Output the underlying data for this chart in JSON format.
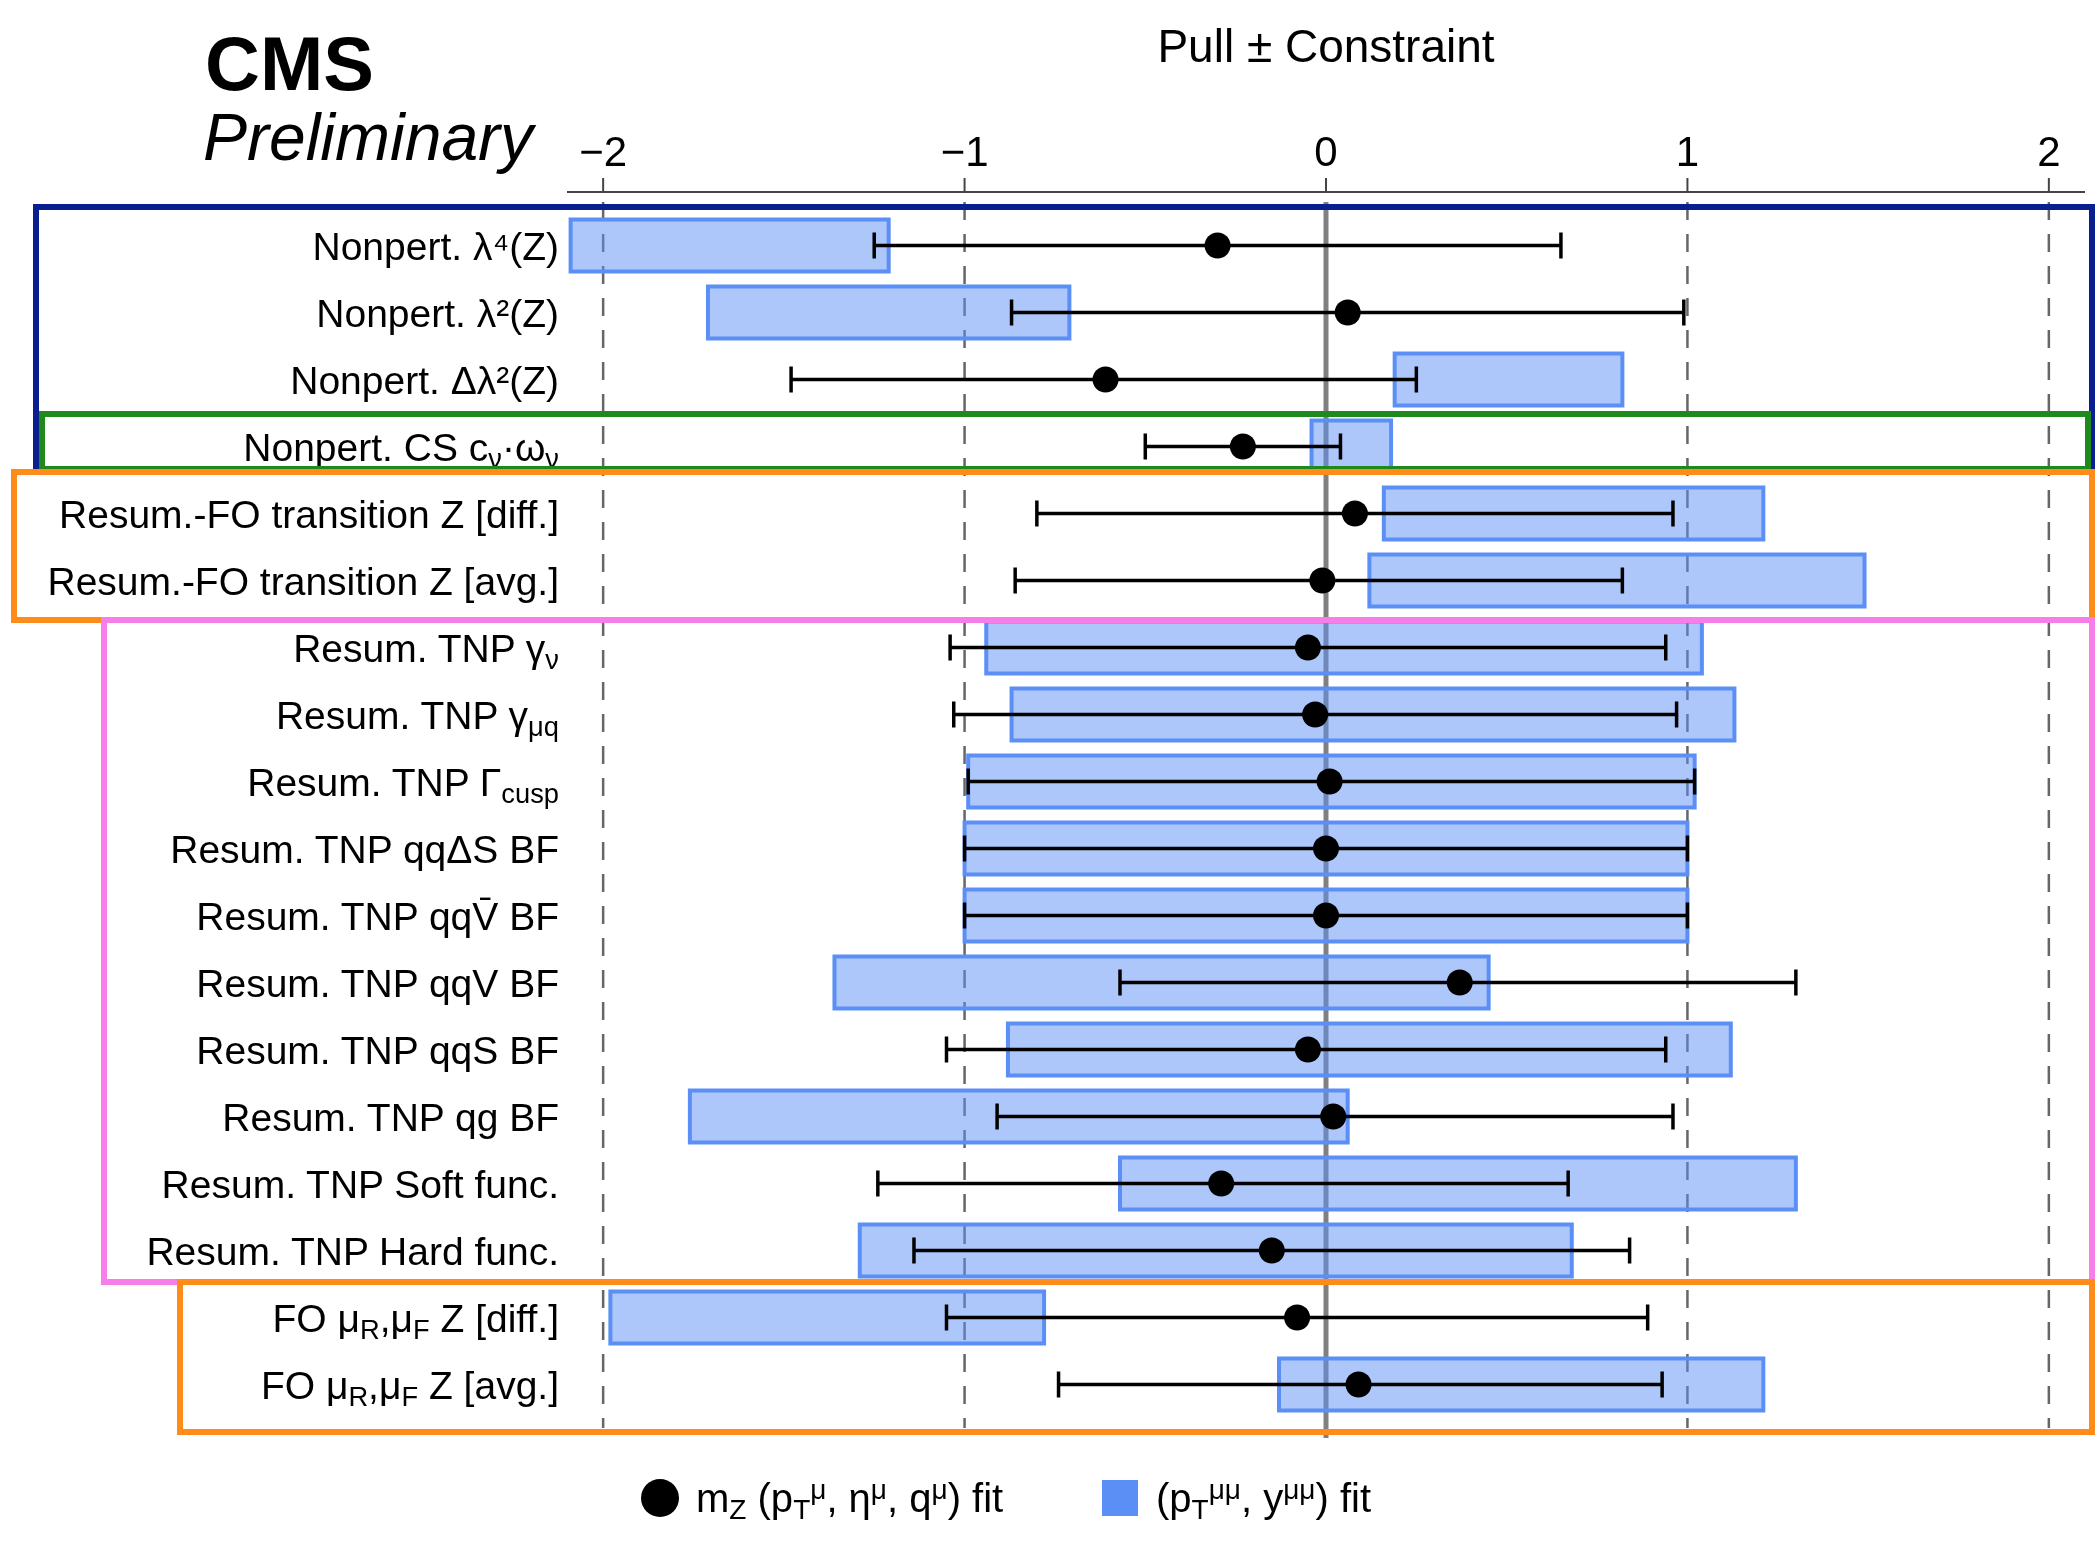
{
  "chart_data": {
    "type": "bar",
    "orientation": "horizontal",
    "title": "CMS",
    "subtitle": "Preliminary",
    "xlabel": "Pull ± Constraint",
    "categories": [
      "Nonpert. λ⁴(Z)",
      "Nonpert. λ²(Z)",
      "Nonpert. Δλ²(Z)",
      "Nonpert. CS c$_{ν}$·ω$_{ν}$",
      "Resum.-FO transition Z [diff.]",
      "Resum.-FO transition Z [avg.]",
      "Resum. TNP γ$_{ν}$",
      "Resum. TNP γ$_{μq}$",
      "Resum. TNP Γ$_{cusp}$",
      "Resum. TNP qqΔS BF",
      "Resum. TNP qqV̄ BF",
      "Resum. TNP qqV BF",
      "Resum. TNP qqS BF",
      "Resum. TNP qg BF",
      "Resum. TNP Soft func.",
      "Resum. TNP Hard func.",
      "FO μ$_{R}$,μ$_{F}$ Z [diff.]",
      "FO μ$_{R}$,μ$_{F}$ Z [avg.]"
    ],
    "series": [
      {
        "name": "(p$_{T}$$^{μμ}$, y$^{μμ}$) fit",
        "color": "#5b8ff5",
        "base": [
          -2.09,
          -1.71,
          0.19,
          -0.04,
          0.16,
          0.12,
          -0.94,
          -0.87,
          -0.99,
          -1.0,
          -1.0,
          -1.36,
          -0.88,
          -1.76,
          -0.57,
          -1.29,
          -1.98,
          -0.13
        ],
        "values": [
          0.88,
          1.0,
          0.63,
          0.22,
          1.05,
          1.37,
          1.98,
          2.0,
          2.01,
          2.0,
          2.0,
          1.81,
          2.0,
          1.82,
          1.87,
          1.97,
          1.2,
          1.34
        ]
      },
      {
        "name": "m$_{Z}$ (p$_{T}$$^{μ}$, η$^{μ}$, q$^{μ}$) fit",
        "type": "scatter",
        "color": "#000000",
        "marker": "circle",
        "values": [
          -0.3,
          0.06,
          -0.61,
          -0.23,
          0.08,
          -0.01,
          -0.05,
          -0.03,
          0.01,
          0.0,
          0.0,
          0.37,
          -0.05,
          0.02,
          -0.29,
          -0.15,
          -0.08,
          0.09
        ],
        "errors": [
          [
            -1.25,
            0.65
          ],
          [
            -0.87,
            0.99
          ],
          [
            -1.48,
            0.25
          ],
          [
            -0.5,
            0.04
          ],
          [
            -0.8,
            0.96
          ],
          [
            -0.86,
            0.82
          ],
          [
            -1.04,
            0.94
          ],
          [
            -1.03,
            0.97
          ],
          [
            -0.99,
            1.02
          ],
          [
            -1.0,
            1.0
          ],
          [
            -1.0,
            1.0
          ],
          [
            -0.57,
            1.3
          ],
          [
            -1.05,
            0.94
          ],
          [
            -0.91,
            0.96
          ],
          [
            -1.24,
            0.67
          ],
          [
            -1.14,
            0.84
          ],
          [
            -1.05,
            0.89
          ],
          [
            -0.74,
            0.93
          ]
        ]
      }
    ],
    "xlim": [
      -2.1,
      2.1
    ],
    "xticks": [
      {
        "value": -2,
        "label": "−2"
      },
      {
        "value": -1,
        "label": "−1"
      },
      0,
      1,
      2
    ],
    "ref_lines": [
      {
        "axis": "x",
        "value": 0,
        "color": "#808080"
      }
    ],
    "grid": "x",
    "legend": "bottom"
  }
}
